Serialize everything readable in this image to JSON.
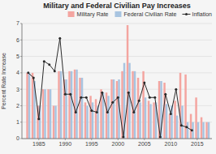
{
  "chart_data": {
    "type": "bar",
    "title": "Military and Federal Civilian Pay Increases",
    "ylabel": "Percent Rate Increase",
    "x": [
      1983,
      1984,
      1985,
      1986,
      1987,
      1988,
      1989,
      1990,
      1991,
      1992,
      1993,
      1994,
      1995,
      1996,
      1997,
      1998,
      1999,
      2000,
      2001,
      2002,
      2003,
      2004,
      2005,
      2006,
      2007,
      2008,
      2009,
      2010,
      2011,
      2012,
      2013,
      2014,
      2015,
      2016,
      2017
    ],
    "series": [
      {
        "name": "Military Rate",
        "type": "bar",
        "color": "#F4A5A0",
        "values": [
          4.0,
          4.0,
          2.0,
          3.0,
          3.0,
          2.0,
          4.1,
          3.6,
          4.1,
          4.2,
          3.7,
          2.2,
          2.6,
          2.4,
          3.0,
          2.8,
          3.6,
          3.5,
          4.1,
          6.9,
          4.1,
          3.7,
          4.1,
          2.3,
          2.2,
          3.5,
          3.4,
          1.5,
          2.3,
          4.0,
          3.9,
          1.5,
          2.5,
          1.3,
          1.0
        ]
      },
      {
        "name": "Federal Civilian Rate",
        "type": "bar",
        "color": "#A8C4E0",
        "values": [
          4.0,
          3.5,
          2.0,
          3.0,
          3.0,
          2.0,
          4.1,
          3.6,
          4.1,
          4.2,
          3.7,
          2.0,
          2.2,
          2.0,
          2.8,
          2.6,
          3.6,
          3.6,
          4.6,
          4.6,
          4.1,
          2.2,
          2.5,
          2.1,
          2.2,
          3.5,
          2.1,
          2.0,
          1.4,
          2.0,
          1.0,
          1.0,
          1.0,
          1.0,
          1.0
        ]
      },
      {
        "name": "Inflation",
        "type": "line",
        "color": "#2a2a2a",
        "marker": "circle",
        "values": [
          4.0,
          3.7,
          1.2,
          4.7,
          4.5,
          4.1,
          6.1,
          2.7,
          2.7,
          1.6,
          2.5,
          2.5,
          1.7,
          1.6,
          2.8,
          1.6,
          2.2,
          2.5,
          0.1,
          2.8,
          1.6,
          2.3,
          3.4,
          2.5,
          2.5,
          0.1,
          2.7,
          1.5,
          3.0,
          0.8,
          0.7,
          0.5,
          null,
          null,
          null
        ]
      }
    ],
    "xlim": [
      1981.8,
      2017.8
    ],
    "xticks": [
      1985,
      1990,
      1995,
      2000,
      2005,
      2010,
      2015
    ],
    "ylim": [
      0,
      7
    ],
    "yticks": [
      0,
      1,
      2,
      3,
      4,
      5,
      6,
      7
    ],
    "grid": true,
    "legend": "upper right"
  }
}
